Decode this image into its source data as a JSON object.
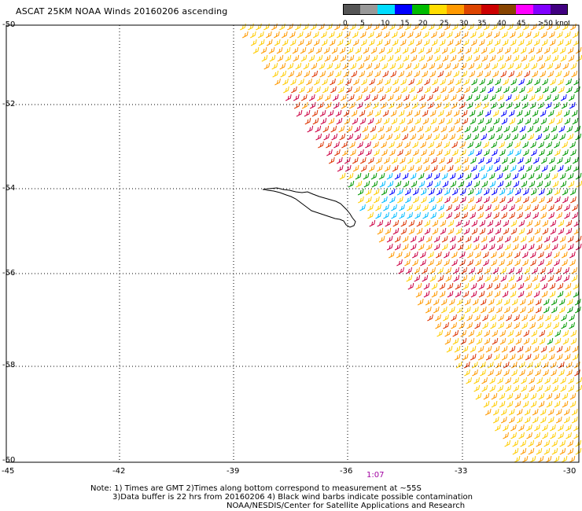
{
  "title": "ASCAT 25KM NOAA Winds 20160206 ascending",
  "legend": {
    "labels": [
      "0",
      "5",
      "10",
      "15",
      "20",
      "25",
      "30",
      "35",
      "40",
      "45",
      ">50 knots"
    ],
    "colors": [
      "#555555",
      "#999999",
      "#00ddff",
      "#0000ff",
      "#00bb00",
      "#ffdd00",
      "#ff9900",
      "#dd4400",
      "#cc0000",
      "#884400",
      "#ff00ff",
      "#8000ff",
      "#400080"
    ]
  },
  "lat_labels": [
    "-50",
    "-52",
    "-54",
    "-56",
    "-58",
    "-60"
  ],
  "lon_labels": [
    "-45",
    "-42",
    "-39",
    "-36",
    "-33",
    "-30"
  ],
  "time_label": "1:07",
  "notes": [
    "Note: 1) Times are GMT 2)Times along bottom correspond to measurement at ~55S",
    "3)Data buffer is 22 hrs from 20160206 4) Black wind barbs indicate possible contamination",
    "NOAA/NESDIS/Center for Satellite Applications and Research"
  ]
}
